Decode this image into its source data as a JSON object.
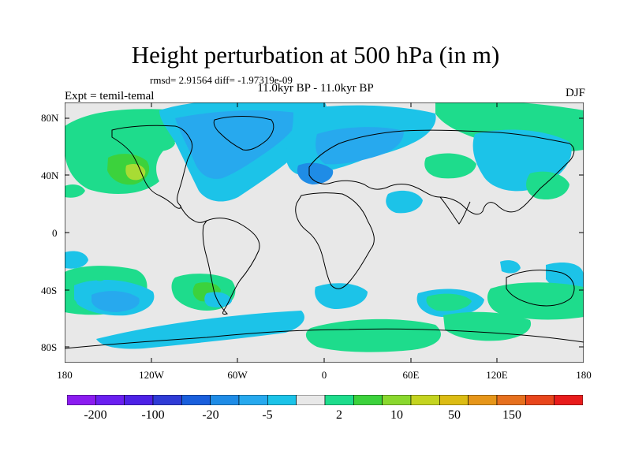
{
  "figure": {
    "title": "Height perturbation at 500 hPa (in m)",
    "stats": "rmsd= 2.91564 diff= -1.97319e-09",
    "subtitle": "11.0kyr BP - 11.0kyr BP",
    "experiment": "Expt = temil-temal",
    "season": "DJF"
  },
  "axes": {
    "lat_labels": [
      "80N",
      "40N",
      "0",
      "40S",
      "80S"
    ],
    "lon_labels": [
      "180",
      "120W",
      "60W",
      "0",
      "60E",
      "120E",
      "180"
    ]
  },
  "colorbar": {
    "colors": [
      "#8b1cf0",
      "#6a1ff0",
      "#4d21e6",
      "#2f3bd6",
      "#1a5fdc",
      "#1f8ce6",
      "#27a9ee",
      "#1cc3e8",
      "#e8e8e8",
      "#1edc8c",
      "#3cd23c",
      "#8ad82e",
      "#c4d420",
      "#dcbc14",
      "#e6961a",
      "#e6701e",
      "#e8461c",
      "#e81c1c"
    ],
    "labels": [
      "-200",
      "-100",
      "-20",
      "-5",
      "2",
      "10",
      "50",
      "150"
    ]
  },
  "field_colors": {
    "background": "#e8e8e8",
    "green": "#1edc8c",
    "deep_green": "#3cd23c",
    "yellow_green": "#a8dc34",
    "light_blue": "#1cc3e8",
    "mid_blue": "#27a9ee",
    "blue": "#1f8ce6"
  }
}
